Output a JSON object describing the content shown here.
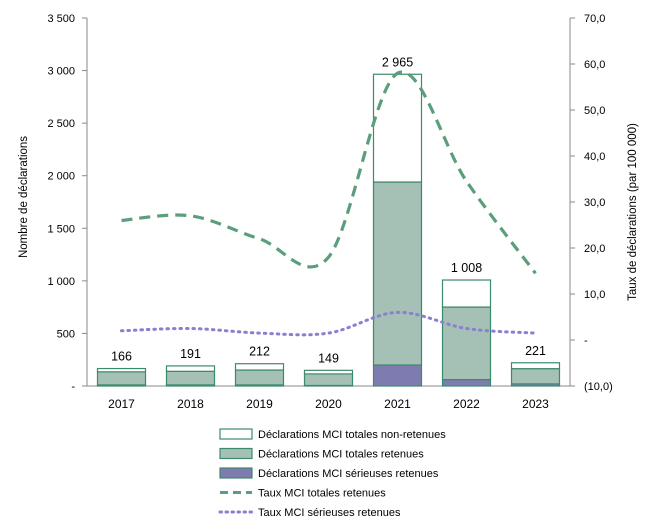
{
  "chart_data": {
    "type": "bar",
    "categories": [
      "2017",
      "2018",
      "2019",
      "2020",
      "2021",
      "2022",
      "2023"
    ],
    "series": [
      {
        "name": "Déclarations MCI totales non-retenues",
        "kind": "bar-stack",
        "axis": "left",
        "color": "#ffffff",
        "stroke": "#3c8a6c",
        "values": [
          31,
          51,
          60,
          34,
          1025,
          257,
          56
        ]
      },
      {
        "name": "Déclarations MCI totales retenues",
        "kind": "bar-stack",
        "axis": "left",
        "color": "#a5c0b5",
        "stroke": "#3c8a6c",
        "values": [
          125,
          130,
          142,
          110,
          1740,
          690,
          145
        ]
      },
      {
        "name": "Déclarations MCI sérieuses retenues",
        "kind": "bar-stack",
        "axis": "left",
        "color": "#7e7bb0",
        "stroke": "#3c8a6c",
        "values": [
          10,
          10,
          10,
          5,
          200,
          61,
          20
        ]
      },
      {
        "name": "Taux MCI totales retenues",
        "kind": "line-dashed",
        "axis": "right",
        "color": "#5a9e7c",
        "values": [
          26.0,
          27.0,
          22.0,
          18.0,
          58.0,
          34.5,
          14.5
        ]
      },
      {
        "name": "Taux MCI sérieuses retenues",
        "kind": "line-dotted",
        "axis": "right",
        "color": "#8b7fd0",
        "values": [
          2.0,
          2.5,
          1.5,
          1.5,
          6.0,
          2.5,
          1.5
        ]
      }
    ],
    "totals": [
      166,
      191,
      212,
      149,
      2965,
      1008,
      221
    ],
    "total_labels": [
      "166",
      "191",
      "212",
      "149",
      "2 965",
      "1 008",
      "221"
    ],
    "ylabel": "Nombre de déclarations",
    "y2label": "Taux de déclarations (par 100 000)",
    "ylim": [
      0,
      3500
    ],
    "y2lim": [
      -10,
      70
    ],
    "y_ticks": [
      0,
      500,
      1000,
      1500,
      2000,
      2500,
      3000,
      3500
    ],
    "y_tick_labels": [
      "-",
      "500",
      "1 000",
      "1 500",
      "2 000",
      "2 500",
      "3 000",
      "3 500"
    ],
    "y2_ticks": [
      -10,
      0,
      10,
      20,
      30,
      40,
      50,
      60,
      70
    ],
    "y2_tick_labels": [
      "(10,0)",
      "-",
      "10,0",
      "20,0",
      "30,0",
      "40,0",
      "50,0",
      "60,0",
      "70,0"
    ],
    "legend_position": "bottom",
    "grid": false
  }
}
